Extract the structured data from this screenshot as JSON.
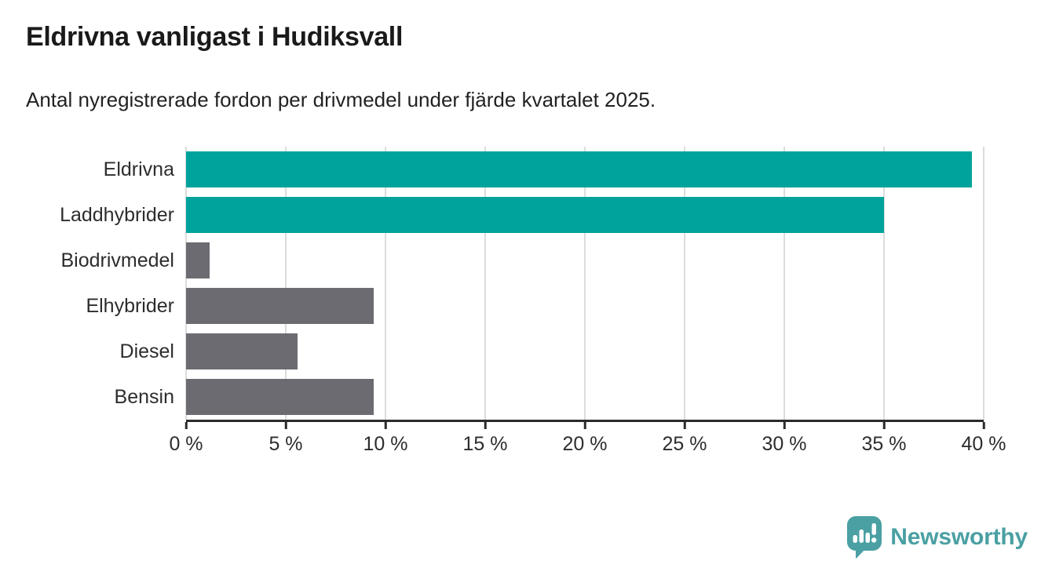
{
  "header": {
    "title": "Eldrivna vanligast i Hudiksvall",
    "subtitle": "Antal nyregistrerade fordon per drivmedel under fjärde kvartalet 2025."
  },
  "chart_data": {
    "type": "bar",
    "orientation": "horizontal",
    "title": "Eldrivna vanligast i Hudiksvall",
    "subtitle": "Antal nyregistrerade fordon per drivmedel under fjärde kvartalet 2025.",
    "categories": [
      "Eldrivna",
      "Laddhybrider",
      "Biodrivmedel",
      "Elhybrider",
      "Diesel",
      "Bensin"
    ],
    "values": [
      39.4,
      35.0,
      1.2,
      9.4,
      5.6,
      9.4
    ],
    "unit": "%",
    "xlim": [
      0,
      40
    ],
    "x_ticks": [
      {
        "value": 0,
        "label": "0 %"
      },
      {
        "value": 5,
        "label": "5 %"
      },
      {
        "value": 10,
        "label": "10 %"
      },
      {
        "value": 15,
        "label": "15 %"
      },
      {
        "value": 20,
        "label": "20 %"
      },
      {
        "value": 25,
        "label": "25 %"
      },
      {
        "value": 30,
        "label": "30 %"
      },
      {
        "value": 35,
        "label": "35 %"
      },
      {
        "value": 40,
        "label": "40 %"
      }
    ],
    "grid": true,
    "legend": "none",
    "bar_colors": [
      "#00a39b",
      "#00a39b",
      "#6b6b71",
      "#6b6b71",
      "#6b6b71",
      "#6b6b71"
    ],
    "accent_color": "#00a39b",
    "default_color": "#6b6b71",
    "gridline_color": "#dcdcdc",
    "axis_color": "#2b2b2b"
  },
  "footer": {
    "brand": "Newsworthy",
    "brand_color": "#4aa0a3"
  }
}
